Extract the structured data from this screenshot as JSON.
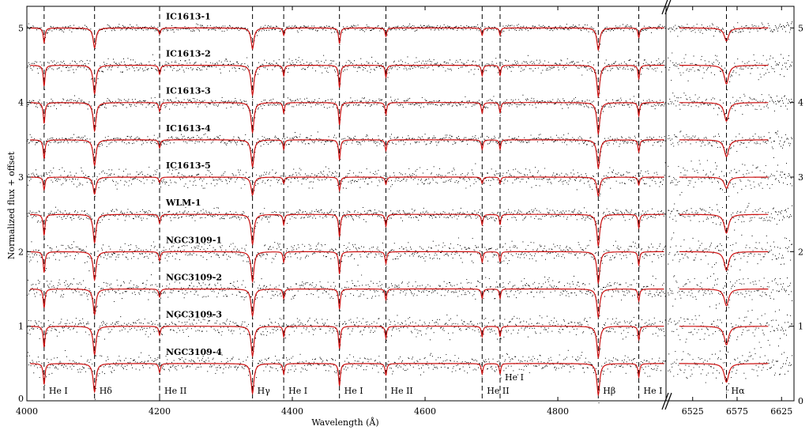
{
  "chart_data": {
    "type": "scatter",
    "title": "",
    "xlabel": "Wavelength (Å)",
    "ylabel": "Normalized flux + offset",
    "panels": [
      {
        "name": "blue",
        "xlim": [
          4000,
          4963
        ],
        "xticks": [
          4000,
          4200,
          4400,
          4600,
          4800
        ]
      },
      {
        "name": "halpha",
        "xlim": [
          6495,
          6639
        ],
        "xticks": [
          6525,
          6575,
          6625
        ]
      }
    ],
    "ylim": [
      0,
      5.29
    ],
    "yticks": [
      0,
      1,
      2,
      3,
      4,
      5
    ],
    "grid": false,
    "series_style": {
      "data": "#000000",
      "model": "#cc1111"
    },
    "lines": [
      {
        "label": "He I",
        "wave": 4026,
        "depth": 0.28,
        "width": 1.6
      },
      {
        "label": "Hδ",
        "wave": 4102,
        "depth": 0.38,
        "width": 2.6
      },
      {
        "label": "He II",
        "wave": 4200,
        "depth": 0.12,
        "width": 1.6
      },
      {
        "label": "Hγ",
        "wave": 4340,
        "depth": 0.4,
        "width": 2.6
      },
      {
        "label": "He I",
        "wave": 4387,
        "depth": 0.14,
        "width": 1.4
      },
      {
        "label": "He I",
        "wave": 4471,
        "depth": 0.3,
        "width": 1.6
      },
      {
        "label": "He II",
        "wave": 4541,
        "depth": 0.16,
        "width": 1.5
      },
      {
        "label": "He II",
        "wave": 4686,
        "depth": 0.14,
        "width": 1.5
      },
      {
        "label": "He I",
        "wave": 4713,
        "depth": 0.14,
        "width": 1.3
      },
      {
        "label": "Hβ",
        "wave": 4861,
        "depth": 0.42,
        "width": 2.6
      },
      {
        "label": "He I",
        "wave": 4922,
        "depth": 0.18,
        "width": 1.5
      },
      {
        "label": "Hα",
        "wave": 6563,
        "depth": 0.25,
        "width": 3.0
      }
    ],
    "spectra": [
      {
        "name": "IC1613-1",
        "offset": 5.0,
        "noise": 0.02,
        "strength": 0.7
      },
      {
        "name": "IC1613-2",
        "offset": 4.5,
        "noise": 0.045,
        "strength": 1.0
      },
      {
        "name": "IC1613-3",
        "offset": 4.0,
        "noise": 0.03,
        "strength": 1.0
      },
      {
        "name": "IC1613-4",
        "offset": 3.5,
        "noise": 0.03,
        "strength": 0.9
      },
      {
        "name": "IC1613-5",
        "offset": 3.0,
        "noise": 0.06,
        "strength": 0.6
      },
      {
        "name": "WLM-1",
        "offset": 2.5,
        "noise": 0.035,
        "strength": 1.0
      },
      {
        "name": "NGC3109-1",
        "offset": 2.0,
        "noise": 0.06,
        "strength": 1.0
      },
      {
        "name": "NGC3109-2",
        "offset": 1.5,
        "noise": 0.06,
        "strength": 0.9
      },
      {
        "name": "NGC3109-3",
        "offset": 1.0,
        "noise": 0.06,
        "strength": 1.0
      },
      {
        "name": "NGC3109-4",
        "offset": 0.5,
        "noise": 0.06,
        "strength": 1.0
      }
    ]
  }
}
